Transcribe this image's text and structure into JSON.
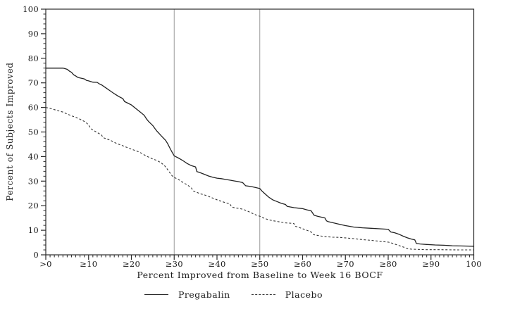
{
  "colors": {
    "curve_solid": "#222222",
    "curve_dashed": "#333333",
    "frame": "#2b2b2b",
    "reference_line": "#9a9a9a",
    "text": "#1a1a1a"
  },
  "chart_data": {
    "type": "line",
    "title": "",
    "xlabel": "Percent Improved from Baseline to Week 16 BOCF",
    "ylabel": "Percent of Subjects Improved",
    "xlim": [
      0,
      100
    ],
    "ylim": [
      0,
      100
    ],
    "grid": false,
    "legend_position": "bottom",
    "x_tick_values": [
      0,
      10,
      20,
      30,
      40,
      50,
      60,
      70,
      80,
      90,
      100
    ],
    "x_tick_labels": [
      ">0",
      "≥10",
      "≥20",
      "≥30",
      "≥40",
      "≥50",
      "≥60",
      "≥70",
      "≥80",
      "≥90",
      "100"
    ],
    "y_tick_values": [
      0,
      10,
      20,
      30,
      40,
      50,
      60,
      70,
      80,
      90,
      100
    ],
    "y_tick_labels": [
      "0",
      "10",
      "20",
      "30",
      "40",
      "50",
      "60",
      "70",
      "80",
      "90",
      "100"
    ],
    "x_minor_tick_step": 1,
    "y_minor_tick_step": 2,
    "reference_lines_x": [
      30,
      50
    ],
    "series": [
      {
        "name": "Pregabalin",
        "style": "solid",
        "points": [
          [
            0,
            76
          ],
          [
            4,
            76
          ],
          [
            4.5,
            75.8
          ],
          [
            5,
            75.5
          ],
          [
            5.5,
            74.8
          ],
          [
            6,
            74.3
          ],
          [
            6.5,
            73.3
          ],
          [
            7,
            72.8
          ],
          [
            7.5,
            72.2
          ],
          [
            8,
            72
          ],
          [
            9,
            71.6
          ],
          [
            9.5,
            71
          ],
          [
            10,
            70.8
          ],
          [
            11,
            70.3
          ],
          [
            12,
            70.2
          ],
          [
            12.5,
            69.6
          ],
          [
            13,
            69.2
          ],
          [
            14,
            68
          ],
          [
            15,
            66.8
          ],
          [
            16,
            65.6
          ],
          [
            17,
            64.5
          ],
          [
            18,
            63.6
          ],
          [
            18.4,
            62.4
          ],
          [
            19,
            61.9
          ],
          [
            20,
            61
          ],
          [
            21,
            59.6
          ],
          [
            22,
            58.2
          ],
          [
            23,
            56.8
          ],
          [
            23.5,
            55.4
          ],
          [
            24,
            54.3
          ],
          [
            25,
            52.6
          ],
          [
            25.5,
            51.4
          ],
          [
            26,
            50.3
          ],
          [
            27,
            48.4
          ],
          [
            28,
            46.6
          ],
          [
            28.5,
            45.2
          ],
          [
            29,
            43.4
          ],
          [
            29.5,
            41.8
          ],
          [
            30,
            40.3
          ],
          [
            31,
            39.4
          ],
          [
            32,
            38.4
          ],
          [
            33,
            37.2
          ],
          [
            34,
            36.3
          ],
          [
            35,
            35.8
          ],
          [
            35.3,
            33.9
          ],
          [
            36,
            33.5
          ],
          [
            37,
            32.8
          ],
          [
            38,
            32.1
          ],
          [
            39,
            31.6
          ],
          [
            40,
            31.2
          ],
          [
            41,
            31
          ],
          [
            42,
            30.7
          ],
          [
            43,
            30.4
          ],
          [
            44,
            30.1
          ],
          [
            45,
            29.8
          ],
          [
            46,
            29.4
          ],
          [
            46.7,
            28.1
          ],
          [
            48,
            27.8
          ],
          [
            49,
            27.4
          ],
          [
            50,
            27
          ],
          [
            50.5,
            26
          ],
          [
            51,
            25.2
          ],
          [
            52,
            23.6
          ],
          [
            53,
            22.4
          ],
          [
            54,
            21.7
          ],
          [
            55,
            21
          ],
          [
            56,
            20.5
          ],
          [
            56.4,
            19.7
          ],
          [
            57,
            19.5
          ],
          [
            58,
            19.2
          ],
          [
            59,
            19
          ],
          [
            60,
            18.8
          ],
          [
            61,
            18.3
          ],
          [
            62,
            17.9
          ],
          [
            62.7,
            16.1
          ],
          [
            63.5,
            15.7
          ],
          [
            64.5,
            15.3
          ],
          [
            65.2,
            15
          ],
          [
            65.6,
            13.8
          ],
          [
            66,
            13.5
          ],
          [
            67,
            13.1
          ],
          [
            68,
            12.7
          ],
          [
            69,
            12.3
          ],
          [
            70,
            11.9
          ],
          [
            71,
            11.6
          ],
          [
            72,
            11.3
          ],
          [
            74,
            11
          ],
          [
            76,
            10.8
          ],
          [
            78,
            10.6
          ],
          [
            80,
            10.4
          ],
          [
            80.6,
            9.3
          ],
          [
            81.5,
            9
          ],
          [
            82.5,
            8.4
          ],
          [
            83.5,
            7.6
          ],
          [
            84.5,
            6.9
          ],
          [
            85.5,
            6.4
          ],
          [
            86.2,
            6.1
          ],
          [
            86.6,
            4.6
          ],
          [
            87.5,
            4.4
          ],
          [
            89,
            4.2
          ],
          [
            91,
            4
          ],
          [
            93,
            3.9
          ],
          [
            95,
            3.7
          ],
          [
            97,
            3.6
          ],
          [
            100,
            3.5
          ]
        ]
      },
      {
        "name": "Placebo",
        "style": "dashed",
        "points": [
          [
            0,
            60
          ],
          [
            1,
            59.6
          ],
          [
            2,
            59.1
          ],
          [
            3,
            58.6
          ],
          [
            4,
            58.1
          ],
          [
            5,
            57.3
          ],
          [
            6,
            56.6
          ],
          [
            7,
            56
          ],
          [
            8,
            55.2
          ],
          [
            9,
            54.3
          ],
          [
            9.7,
            53.4
          ],
          [
            10,
            52.8
          ],
          [
            10.5,
            51.4
          ],
          [
            11,
            50.8
          ],
          [
            12,
            49.8
          ],
          [
            13,
            48.8
          ],
          [
            13.4,
            47.7
          ],
          [
            14,
            47.3
          ],
          [
            15,
            46.7
          ],
          [
            16,
            45.8
          ],
          [
            17,
            45
          ],
          [
            18,
            44.4
          ],
          [
            19,
            43.7
          ],
          [
            20,
            43
          ],
          [
            21,
            42.4
          ],
          [
            22,
            41.7
          ],
          [
            23,
            40.7
          ],
          [
            24,
            39.8
          ],
          [
            25,
            39
          ],
          [
            26,
            38.4
          ],
          [
            27,
            37.4
          ],
          [
            27.7,
            36.4
          ],
          [
            28.3,
            35.1
          ],
          [
            29,
            33.4
          ],
          [
            29.5,
            32.2
          ],
          [
            30,
            31.5
          ],
          [
            31,
            30.7
          ],
          [
            32,
            29.5
          ],
          [
            33,
            28.5
          ],
          [
            34,
            27.3
          ],
          [
            34.4,
            26
          ],
          [
            35,
            25.7
          ],
          [
            36,
            24.9
          ],
          [
            37,
            24.4
          ],
          [
            38,
            23.8
          ],
          [
            39,
            23.1
          ],
          [
            40,
            22.4
          ],
          [
            41,
            21.8
          ],
          [
            42,
            21.2
          ],
          [
            43,
            20.8
          ],
          [
            43.4,
            19.5
          ],
          [
            44,
            19.2
          ],
          [
            45,
            18.9
          ],
          [
            46,
            18.6
          ],
          [
            47,
            17.9
          ],
          [
            48,
            17.1
          ],
          [
            49,
            16.3
          ],
          [
            50,
            15.7
          ],
          [
            51,
            14.9
          ],
          [
            52,
            14.3
          ],
          [
            53,
            13.9
          ],
          [
            54,
            13.6
          ],
          [
            55,
            13.3
          ],
          [
            56,
            13
          ],
          [
            57,
            12.9
          ],
          [
            58,
            12.7
          ],
          [
            58.3,
            11.6
          ],
          [
            59,
            11.3
          ],
          [
            60,
            10.6
          ],
          [
            61,
            10
          ],
          [
            62,
            9.3
          ],
          [
            62.6,
            8.2
          ],
          [
            63.5,
            7.9
          ],
          [
            64.5,
            7.6
          ],
          [
            65.5,
            7.4
          ],
          [
            67,
            7.2
          ],
          [
            68.5,
            7.1
          ],
          [
            70,
            6.9
          ],
          [
            72,
            6.6
          ],
          [
            74,
            6.2
          ],
          [
            76,
            5.9
          ],
          [
            78,
            5.5
          ],
          [
            80,
            5.2
          ],
          [
            81,
            4.7
          ],
          [
            82,
            4.1
          ],
          [
            83,
            3.5
          ],
          [
            84,
            2.9
          ],
          [
            84.6,
            2.5
          ],
          [
            85.5,
            2.3
          ],
          [
            87,
            2.2
          ],
          [
            89,
            2.1
          ],
          [
            92,
            2.1
          ],
          [
            96,
            2
          ],
          [
            100,
            2
          ]
        ]
      }
    ]
  }
}
